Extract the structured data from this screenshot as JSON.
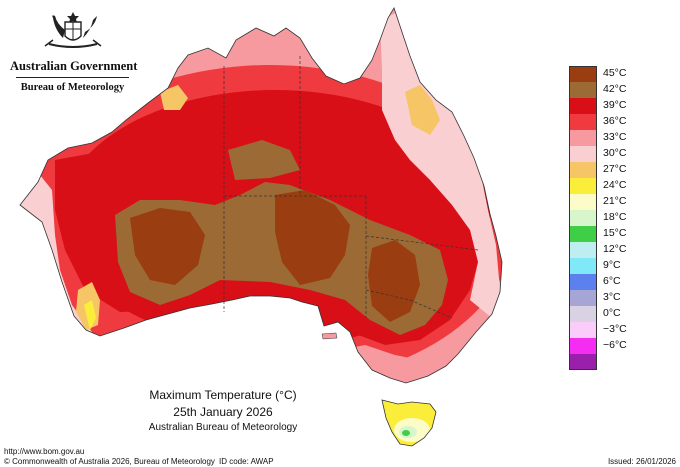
{
  "header": {
    "government": "Australian Government",
    "bureau": "Bureau of Meteorology"
  },
  "legend": {
    "items": [
      {
        "label": "45°C",
        "color": "#9a3d10"
      },
      {
        "label": "42°C",
        "color": "#9b6a35"
      },
      {
        "label": "39°C",
        "color": "#d80f17"
      },
      {
        "label": "36°C",
        "color": "#ef3a40"
      },
      {
        "label": "33°C",
        "color": "#f69a9f"
      },
      {
        "label": "30°C",
        "color": "#f9cfd1"
      },
      {
        "label": "27°C",
        "color": "#f6c565"
      },
      {
        "label": "24°C",
        "color": "#fbee3b"
      },
      {
        "label": "21°C",
        "color": "#fbfcc8"
      },
      {
        "label": "18°C",
        "color": "#d8f6cc"
      },
      {
        "label": "15°C",
        "color": "#3fcf47"
      },
      {
        "label": "12°C",
        "color": "#bfeef0"
      },
      {
        "label": "9°C",
        "color": "#7fe9f8"
      },
      {
        "label": "6°C",
        "color": "#5c80ee"
      },
      {
        "label": "3°C",
        "color": "#a6a6d6"
      },
      {
        "label": "0°C",
        "color": "#d8d2e2"
      },
      {
        "label": "−3°C",
        "color": "#f9ccf9"
      },
      {
        "label": "−6°C",
        "color": "#f52cf1"
      },
      {
        "label": "",
        "color": "#9a1faa"
      }
    ]
  },
  "caption": {
    "title": "Maximum Temperature (°C)",
    "date": "25th January 2026",
    "agency": "Australian Bureau of Meteorology"
  },
  "footer": {
    "url": "http://www.bom.gov.au",
    "copyright": "© Commonwealth of Australia 2026, Bureau of Meteorology",
    "id_code": "ID code: AWAP",
    "issued": "Issued: 26/01/2026"
  }
}
